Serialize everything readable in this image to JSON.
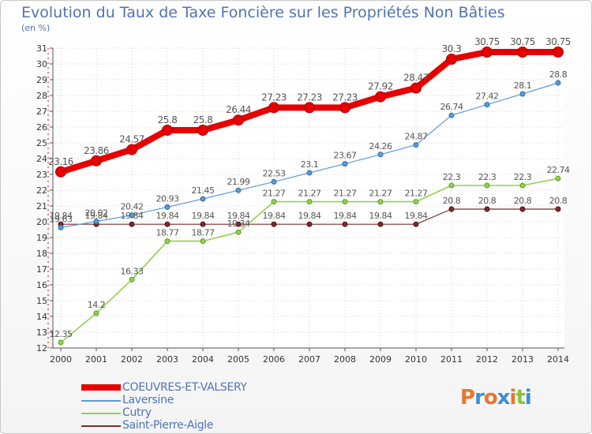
{
  "title": "Evolution du Taux de Taxe Foncière sur les Propriétés Non Bâties",
  "unit": "(en %)",
  "brand": {
    "text": "Proxiti",
    "colors": [
      "#e8762d",
      "#3b8fd4",
      "#e8762d",
      "#3b8fd4",
      "#e8762d",
      "#8ac43f",
      "#3b8fd4"
    ]
  },
  "chart_data": {
    "type": "line",
    "title": "Evolution du Taux de Taxe Foncière sur les Propriétés Non Bâties",
    "ylabel": "(en %)",
    "xlabel": "",
    "x": [
      "2000",
      "2001",
      "2002",
      "2003",
      "2004",
      "2005",
      "2006",
      "2007",
      "2008",
      "2009",
      "2010",
      "2011",
      "2012",
      "2013",
      "2014"
    ],
    "yticks": [
      "12",
      "13",
      "14",
      "15",
      "16",
      "17",
      "18",
      "19",
      "20",
      "21",
      "22",
      "23",
      "24",
      "25",
      "26",
      "27",
      "28",
      "29",
      "30",
      "31"
    ],
    "ylim": [
      12,
      31
    ],
    "grid": "dotted",
    "legend_position": "bottom-left",
    "series": [
      {
        "name": "COEUVRES-ET-VALSERY",
        "color": "#e60000",
        "values": [
          23.16,
          23.86,
          24.57,
          25.8,
          25.8,
          26.44,
          27.23,
          27.23,
          27.23,
          27.92,
          28.47,
          30.3,
          30.75,
          30.75,
          30.75
        ],
        "labels": [
          "23.16",
          "23.86",
          "24.57",
          "25.8",
          "25.8",
          "26.44",
          "27.23",
          "27.23",
          "27.23",
          "27.92",
          "28.47",
          "30.3",
          "30.75",
          "30.75",
          "30.75"
        ]
      },
      {
        "name": "Laversine",
        "color": "#5b9bd5",
        "values": [
          19.63,
          20.02,
          20.42,
          20.93,
          21.45,
          21.99,
          22.53,
          23.1,
          23.67,
          24.26,
          24.87,
          26.74,
          27.42,
          28.1,
          28.8
        ],
        "labels": [
          "19.63",
          "20.02",
          "20.42",
          "20.93",
          "21.45",
          "21.99",
          "22.53",
          "23.1",
          "23.67",
          "24.26",
          "24.87",
          "26.74",
          "27.42",
          "28.1",
          "28.8"
        ]
      },
      {
        "name": "Cutry",
        "color": "#92d050",
        "values": [
          12.35,
          14.2,
          16.33,
          18.77,
          18.77,
          19.34,
          21.27,
          21.27,
          21.27,
          21.27,
          21.27,
          22.3,
          22.3,
          22.3,
          22.74
        ],
        "labels": [
          "12.35",
          "14.2",
          "16.33",
          "18.77",
          "18.77",
          "19.34",
          "21.27",
          "21.27",
          "21.27",
          "21.27",
          "21.27",
          "22.3",
          "22.3",
          "22.3",
          "22.74"
        ]
      },
      {
        "name": "Saint-Pierre-Aigle",
        "color": "#7b2d2d",
        "values": [
          19.84,
          19.84,
          19.84,
          19.84,
          19.84,
          19.84,
          19.84,
          19.84,
          19.84,
          19.84,
          19.84,
          20.8,
          20.8,
          20.8,
          20.8
        ],
        "labels": [
          "19.84",
          "19.84",
          "19.84",
          "19.84",
          "19.84",
          "19.84",
          "19.84",
          "19.84",
          "19.84",
          "19.84",
          "19.84",
          "20.8",
          "20.8",
          "20.8",
          "20.8"
        ]
      }
    ]
  }
}
